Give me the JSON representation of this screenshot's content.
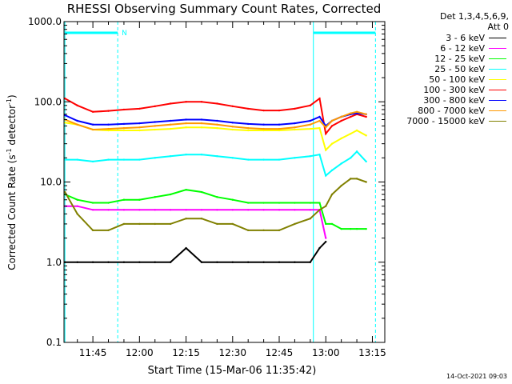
{
  "chart_data": {
    "type": "line",
    "title": "RHESSI Observing Summary Count Rates, Corrected",
    "xlabel": "Start Time (15-Mar-06 11:35:42)",
    "ylabel": "Corrected Count Rate (s",
    "ylabel_sup1": "-1",
    "ylabel_mid": " detector",
    "ylabel_sup2": "-1",
    "ylabel_end": ")",
    "yscale": "log",
    "ylim": [
      0.1,
      1000
    ],
    "xlim": [
      "11:35:42",
      "13:19:00"
    ],
    "x_ticks": [
      "11:45",
      "12:00",
      "12:15",
      "12:30",
      "12:45",
      "13:00",
      "13:15"
    ],
    "y_ticks": [
      "0.1",
      "1.0",
      "10.0",
      "100.0",
      "1000.0"
    ],
    "grid": true,
    "legend_position": "top-right",
    "detector_label": "Det 1,3,4,5,6,9,",
    "attenuator_label": "Att 0",
    "night_marker": "N",
    "night_bars": [
      {
        "start": "11:36:00",
        "end": "11:53:00"
      },
      {
        "start": "12:56:00",
        "end": "13:16:00"
      }
    ],
    "markers_dashed": [
      "11:53:00",
      "13:16:00"
    ],
    "markers_solid": [
      "11:36:00",
      "12:56:00"
    ],
    "x": [
      "11:36",
      "11:40",
      "11:45",
      "11:50",
      "11:55",
      "12:00",
      "12:05",
      "12:10",
      "12:15",
      "12:20",
      "12:25",
      "12:30",
      "12:35",
      "12:40",
      "12:45",
      "12:50",
      "12:55",
      "12:58",
      "13:00",
      "13:02",
      "13:05",
      "13:08",
      "13:10",
      "13:13"
    ],
    "series": [
      {
        "name": "3 - 6 keV",
        "color": "#000000",
        "values": [
          1,
          1,
          1,
          1,
          1,
          1,
          1,
          1,
          1.5,
          1,
          1,
          1,
          1,
          1,
          1,
          1,
          1,
          1.5,
          1.8,
          null,
          null,
          null,
          null,
          null
        ]
      },
      {
        "name": "6 - 12 keV",
        "color": "#ff00ff",
        "values": [
          5,
          5,
          4.5,
          4.5,
          4.5,
          4.5,
          4.5,
          4.5,
          4.5,
          4.5,
          4.5,
          4.5,
          4.5,
          4.5,
          4.5,
          4.5,
          4.5,
          4.5,
          2,
          null,
          null,
          null,
          null,
          null
        ]
      },
      {
        "name": "12 - 25 keV",
        "color": "#00ff00",
        "values": [
          7,
          6,
          5.5,
          5.5,
          6,
          6,
          6.5,
          7,
          8,
          7.5,
          6.5,
          6,
          5.5,
          5.5,
          5.5,
          5.5,
          5.5,
          5.5,
          3,
          3,
          2.6,
          2.6,
          2.6,
          2.6
        ]
      },
      {
        "name": "25 - 50 keV",
        "color": "#00ffff",
        "values": [
          19,
          19,
          18,
          19,
          19,
          19,
          20,
          21,
          22,
          22,
          21,
          20,
          19,
          19,
          19,
          20,
          21,
          22,
          12,
          14,
          17,
          20,
          24,
          18
        ]
      },
      {
        "name": "50 - 100 keV",
        "color": "#ffff00",
        "values": [
          55,
          52,
          45,
          44,
          44,
          44,
          45,
          46,
          48,
          48,
          47,
          45,
          44,
          44,
          44,
          45,
          46,
          47,
          25,
          30,
          35,
          40,
          44,
          38
        ]
      },
      {
        "name": "100 - 300 keV",
        "color": "#ff0000",
        "values": [
          110,
          90,
          75,
          77,
          80,
          82,
          88,
          95,
          100,
          100,
          95,
          88,
          82,
          78,
          78,
          82,
          90,
          110,
          40,
          50,
          58,
          65,
          70,
          65
        ]
      },
      {
        "name": "300 - 800 keV",
        "color": "#0000ff",
        "values": [
          68,
          58,
          52,
          52,
          53,
          54,
          56,
          58,
          60,
          60,
          58,
          55,
          53,
          52,
          52,
          54,
          58,
          65,
          50,
          58,
          65,
          70,
          72,
          70
        ]
      },
      {
        "name": "800 - 7000 keV",
        "color": "#ff9900",
        "values": [
          60,
          52,
          45,
          46,
          47,
          48,
          50,
          52,
          54,
          54,
          52,
          49,
          47,
          46,
          46,
          48,
          52,
          58,
          48,
          58,
          65,
          72,
          75,
          70
        ]
      },
      {
        "name": "7000 - 15000 keV",
        "color": "#808000",
        "values": [
          7.5,
          4,
          2.5,
          2.5,
          3,
          3,
          3,
          3,
          3.5,
          3.5,
          3,
          3,
          2.5,
          2.5,
          2.5,
          3,
          3.5,
          4.5,
          5,
          7,
          9,
          11,
          11,
          10
        ]
      }
    ]
  },
  "footer": {
    "date": "14-Oct-2021 09:03"
  }
}
